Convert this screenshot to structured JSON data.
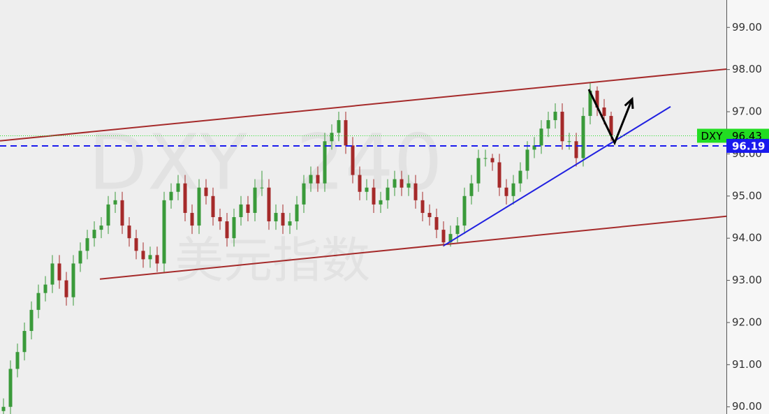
{
  "chart_data": {
    "type": "candlestick",
    "watermark": "DXY, 240",
    "watermark_subtitle": "美元指数",
    "up_color": "#3a9a3a",
    "down_color": "#a52a2a",
    "xlim": [
      -0.5,
      103.5
    ],
    "ylim": [
      89.83,
      99.65
    ],
    "yticks": [
      {
        "value": 90,
        "label": "90.00"
      },
      {
        "value": 91,
        "label": "91.00"
      },
      {
        "value": 92,
        "label": "92.00"
      },
      {
        "value": 93,
        "label": "93.00"
      },
      {
        "value": 94,
        "label": "94.00"
      },
      {
        "value": 95,
        "label": "95.00"
      },
      {
        "value": 96,
        "label": "96.00"
      },
      {
        "value": 97,
        "label": "97.00"
      },
      {
        "value": 98,
        "label": "98.00"
      },
      {
        "value": 99,
        "label": "99.00"
      }
    ],
    "open": [
      89.9,
      90.0,
      90.9,
      91.3,
      91.8,
      92.3,
      92.7,
      92.9,
      93.4,
      93.0,
      92.6,
      93.4,
      93.7,
      94.0,
      94.2,
      94.3,
      94.8,
      94.9,
      94.3,
      94.0,
      93.7,
      93.5,
      93.6,
      93.4,
      94.9,
      95.1,
      95.3,
      94.6,
      94.3,
      95.2,
      95.0,
      94.5,
      94.4,
      94.0,
      94.5,
      94.8,
      94.6,
      95.2,
      95.2,
      94.4,
      94.6,
      94.3,
      94.4,
      94.8,
      95.3,
      95.5,
      95.3,
      96.3,
      96.5,
      96.8,
      96.2,
      95.5,
      95.1,
      95.2,
      94.8,
      94.9,
      95.2,
      95.4,
      95.2,
      95.3,
      94.9,
      94.6,
      94.5,
      94.2,
      93.9,
      94.1,
      94.3,
      95.0,
      95.3,
      95.9,
      95.9,
      95.8,
      95.2,
      95.0,
      95.3,
      95.6,
      96.1,
      96.2,
      96.6,
      96.8,
      97.0,
      96.3,
      96.3,
      95.9,
      96.9,
      97.5,
      97.1,
      96.9
    ],
    "high": [
      90.2,
      91.1,
      91.5,
      92.0,
      92.5,
      92.9,
      93.1,
      93.6,
      93.6,
      93.2,
      93.6,
      93.9,
      94.2,
      94.4,
      94.5,
      95.0,
      95.1,
      95.1,
      94.5,
      94.2,
      93.9,
      93.8,
      93.8,
      95.1,
      95.3,
      95.5,
      95.5,
      94.8,
      95.4,
      95.4,
      95.2,
      94.7,
      94.6,
      94.7,
      95.0,
      95.0,
      95.4,
      95.6,
      95.4,
      94.8,
      94.8,
      94.6,
      95.0,
      95.5,
      95.7,
      95.7,
      96.5,
      96.7,
      97.0,
      97.0,
      96.4,
      95.7,
      95.4,
      95.4,
      95.1,
      95.4,
      95.6,
      95.6,
      95.5,
      95.5,
      95.1,
      94.8,
      94.7,
      94.4,
      94.3,
      94.5,
      95.2,
      95.5,
      96.1,
      96.1,
      96.0,
      96.0,
      95.4,
      95.5,
      95.8,
      96.3,
      96.4,
      96.8,
      97.0,
      97.2,
      97.2,
      96.5,
      96.5,
      97.1,
      97.7,
      97.6,
      97.3,
      97.0
    ],
    "low": [
      89.7,
      89.8,
      90.7,
      91.1,
      91.6,
      92.1,
      92.5,
      92.7,
      92.8,
      92.4,
      92.4,
      93.2,
      93.5,
      93.8,
      94.0,
      94.1,
      94.6,
      94.1,
      93.8,
      93.5,
      93.3,
      93.3,
      93.2,
      93.2,
      94.7,
      94.9,
      94.4,
      94.1,
      94.1,
      94.8,
      94.3,
      94.2,
      93.8,
      93.8,
      94.3,
      94.4,
      94.4,
      95.0,
      94.2,
      94.2,
      94.1,
      94.1,
      94.2,
      94.6,
      95.1,
      95.1,
      95.1,
      96.1,
      96.3,
      96.0,
      95.3,
      94.9,
      94.9,
      94.6,
      94.6,
      94.7,
      95.0,
      95.0,
      95.0,
      94.7,
      94.4,
      94.3,
      94.0,
      93.8,
      93.8,
      93.9,
      94.1,
      94.8,
      95.1,
      95.7,
      95.6,
      95.0,
      94.8,
      94.8,
      95.1,
      95.4,
      95.9,
      96.0,
      96.4,
      96.6,
      96.1,
      96.1,
      95.7,
      95.7,
      96.7,
      96.9,
      96.7,
      96.3
    ],
    "close": [
      90.0,
      90.9,
      91.3,
      91.8,
      92.3,
      92.7,
      92.9,
      93.4,
      93.0,
      92.6,
      93.4,
      93.7,
      94.0,
      94.2,
      94.3,
      94.8,
      94.9,
      94.3,
      94.0,
      93.7,
      93.5,
      93.6,
      93.4,
      94.9,
      95.1,
      95.3,
      94.6,
      94.3,
      95.2,
      95.0,
      94.5,
      94.4,
      94.0,
      94.5,
      94.8,
      94.6,
      95.2,
      95.2,
      94.4,
      94.6,
      94.3,
      94.4,
      94.8,
      95.3,
      95.5,
      95.3,
      96.3,
      96.5,
      96.8,
      96.2,
      95.5,
      95.1,
      95.2,
      94.8,
      94.9,
      95.2,
      95.4,
      95.2,
      95.3,
      94.9,
      94.6,
      94.5,
      94.2,
      93.9,
      94.1,
      94.3,
      95.0,
      95.3,
      95.9,
      95.9,
      95.8,
      95.2,
      95.0,
      95.3,
      95.6,
      96.1,
      96.2,
      96.6,
      96.8,
      97.0,
      96.3,
      96.3,
      95.9,
      96.9,
      97.5,
      97.1,
      96.9,
      96.43
    ],
    "price_line": {
      "name": "DXY",
      "value": 96.43,
      "label": "96.43",
      "color": "#22dd22"
    },
    "alert_line": {
      "value": 96.19,
      "label": "96.19",
      "color": "#1a1aee"
    },
    "trendlines": [
      {
        "color": "#a52a2a",
        "x": [
          -0.5,
          103.5
        ],
        "y": [
          96.31,
          98.01
        ]
      },
      {
        "color": "#a52a2a",
        "x": [
          13.8,
          103.5
        ],
        "y": [
          93.03,
          94.52
        ]
      },
      {
        "color": "#2020e0",
        "x": [
          63.0,
          95.5
        ],
        "y": [
          93.82,
          97.12
        ]
      },
      {
        "color": "#000000",
        "x": [
          83.8,
          87.5,
          90.0
        ],
        "y": [
          97.53,
          96.26,
          97.3
        ],
        "arrow": true
      }
    ]
  }
}
